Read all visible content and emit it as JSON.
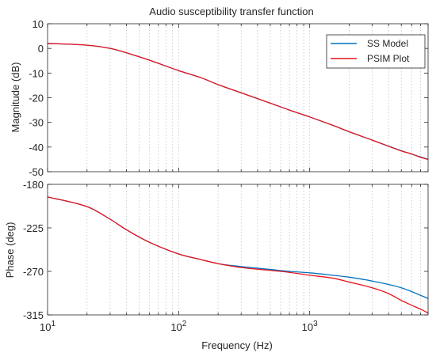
{
  "chart_data": [
    {
      "type": "line",
      "title": "Audio susceptibility transfer function",
      "xlabel": "",
      "ylabel": "Magnitude (dB)",
      "xscale": "log",
      "xlim": [
        10,
        8000
      ],
      "ylim": [
        -50,
        10
      ],
      "yticks": [
        10,
        0,
        -10,
        -20,
        -30,
        -40,
        -50
      ],
      "grid": "x-major-and-minor-dotted",
      "legend_position": "top-right",
      "series": [
        {
          "name": "SS Model",
          "color": "#0072BD",
          "points": [
            [
              10,
              2.0
            ],
            [
              20,
              1.3
            ],
            [
              30,
              0.0
            ],
            [
              40,
              -1.8
            ],
            [
              60,
              -4.8
            ],
            [
              100,
              -9.0
            ],
            [
              150,
              -12.0
            ],
            [
              200,
              -14.7
            ],
            [
              300,
              -18.0
            ],
            [
              500,
              -22.2
            ],
            [
              700,
              -25.0
            ],
            [
              1000,
              -27.8
            ],
            [
              1500,
              -31.2
            ],
            [
              2000,
              -33.8
            ],
            [
              3000,
              -37.2
            ],
            [
              5000,
              -41.5
            ],
            [
              8000,
              -45.0
            ]
          ]
        },
        {
          "name": "PSIM Plot",
          "color": "#E8141C",
          "points": [
            [
              10,
              2.0
            ],
            [
              20,
              1.3
            ],
            [
              30,
              0.0
            ],
            [
              40,
              -1.8
            ],
            [
              60,
              -4.8
            ],
            [
              100,
              -9.0
            ],
            [
              150,
              -12.0
            ],
            [
              200,
              -14.7
            ],
            [
              300,
              -18.0
            ],
            [
              500,
              -22.2
            ],
            [
              700,
              -25.0
            ],
            [
              1000,
              -27.8
            ],
            [
              1500,
              -31.2
            ],
            [
              2000,
              -33.8
            ],
            [
              3000,
              -37.2
            ],
            [
              5000,
              -41.6
            ],
            [
              6000,
              -42.8
            ],
            [
              7000,
              -44.2
            ],
            [
              8000,
              -45.0
            ]
          ]
        }
      ]
    },
    {
      "type": "line",
      "title": "",
      "xlabel": "Frequency  (Hz)",
      "ylabel": "Phase (deg)",
      "xscale": "log",
      "xlim": [
        10,
        8000
      ],
      "ylim": [
        -315,
        -180
      ],
      "yticks": [
        -180,
        -225,
        -270,
        -315
      ],
      "grid": "x-major-and-minor-dotted",
      "series": [
        {
          "name": "SS Model",
          "color": "#0072BD",
          "points": [
            [
              10,
              -193
            ],
            [
              20,
              -203
            ],
            [
              30,
              -216
            ],
            [
              40,
              -227
            ],
            [
              60,
              -240
            ],
            [
              100,
              -252
            ],
            [
              150,
              -258
            ],
            [
              200,
              -262
            ],
            [
              300,
              -265
            ],
            [
              500,
              -268
            ],
            [
              700,
              -270
            ],
            [
              1000,
              -271.5
            ],
            [
              1500,
              -274
            ],
            [
              2000,
              -276
            ],
            [
              3000,
              -280
            ],
            [
              5000,
              -287
            ],
            [
              8000,
              -298
            ]
          ]
        },
        {
          "name": "PSIM Plot",
          "color": "#E8141C",
          "points": [
            [
              10,
              -193
            ],
            [
              20,
              -203
            ],
            [
              30,
              -216
            ],
            [
              40,
              -227
            ],
            [
              60,
              -240
            ],
            [
              100,
              -252
            ],
            [
              150,
              -258
            ],
            [
              200,
              -262
            ],
            [
              300,
              -266
            ],
            [
              500,
              -269
            ],
            [
              700,
              -271
            ],
            [
              1000,
              -274
            ],
            [
              1500,
              -277
            ],
            [
              2000,
              -281
            ],
            [
              3000,
              -287
            ],
            [
              4000,
              -293
            ],
            [
              5000,
              -300
            ],
            [
              6000,
              -305
            ],
            [
              7000,
              -309
            ],
            [
              8000,
              -313
            ]
          ]
        }
      ]
    }
  ]
}
